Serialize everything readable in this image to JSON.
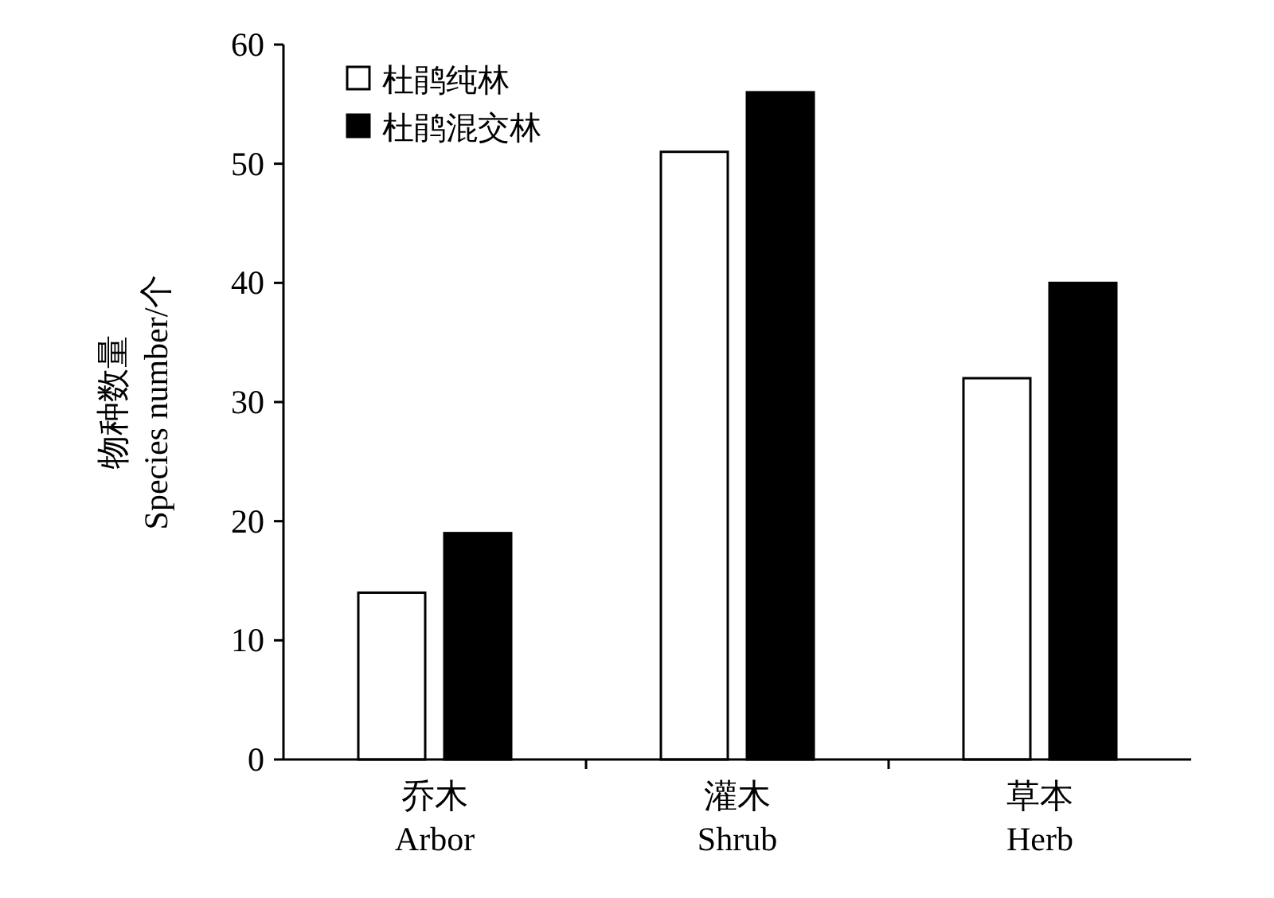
{
  "chart_data": {
    "type": "bar",
    "ylabel": "物种数量\nSpecies number/个",
    "categories": [
      "乔木\nArbor",
      "灌木\nShrub",
      "草本\nHerb"
    ],
    "series": [
      {
        "name": "杜鹃纯林",
        "color": "#ffffff",
        "values": [
          14,
          51,
          32
        ]
      },
      {
        "name": "杜鹃混交林",
        "color": "#000000",
        "values": [
          19,
          56,
          40
        ]
      }
    ],
    "ylim": [
      0,
      60
    ],
    "yticks": [
      0,
      10,
      20,
      30,
      40,
      50,
      60
    ],
    "legend": "top left",
    "grid": false
  }
}
